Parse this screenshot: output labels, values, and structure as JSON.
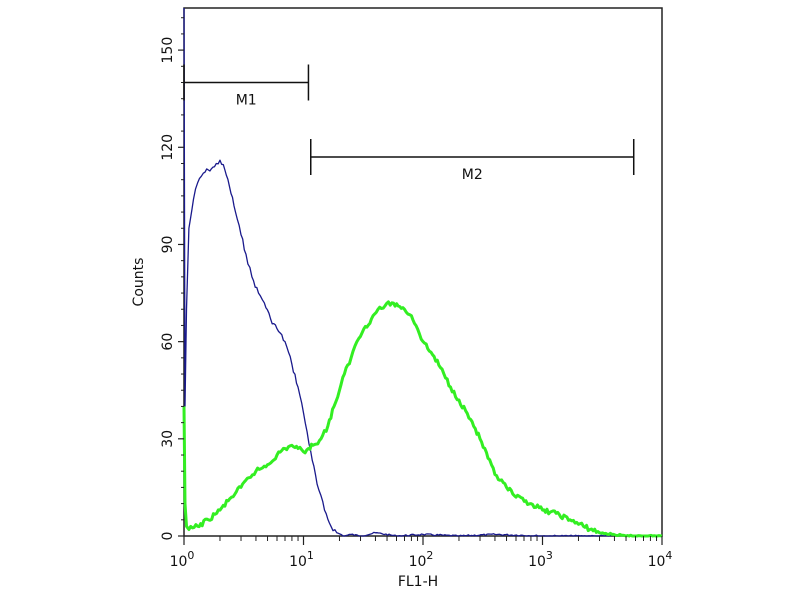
{
  "chart_data": {
    "type": "line",
    "xlabel": "FL1-H",
    "ylabel": "Counts",
    "x_scale": "log",
    "xlim": [
      1,
      10000
    ],
    "ylim": [
      0,
      163
    ],
    "y_ticks": [
      0,
      30,
      60,
      90,
      120,
      150
    ],
    "x_ticks": [
      {
        "value": 1,
        "base": "10",
        "exp": "0"
      },
      {
        "value": 10,
        "base": "10",
        "exp": "1"
      },
      {
        "value": 100,
        "base": "10",
        "exp": "2"
      },
      {
        "value": 1000,
        "base": "10",
        "exp": "3"
      },
      {
        "value": 10000,
        "base": "10",
        "exp": "4"
      }
    ],
    "series": [
      {
        "color": "#1a1a8c",
        "x": [
          1.0,
          1.02,
          1.05,
          1.1,
          1.2,
          1.3,
          1.45,
          1.6,
          1.8,
          2.0,
          2.2,
          2.4,
          2.7,
          3.0,
          3.3,
          3.7,
          4.2,
          4.7,
          5.3,
          6.0,
          7.0,
          8.0,
          9.0,
          10.0,
          11.5,
          13.0,
          15.0,
          17.0,
          19.0,
          22.0,
          25.0,
          30.0,
          40.0,
          60.0,
          100.0,
          200.0,
          400.0,
          1000.0,
          3000.0,
          10000.0
        ],
        "y": [
          163,
          40,
          70,
          95,
          104,
          109,
          112,
          113,
          114,
          116,
          113,
          108,
          100,
          93,
          87,
          80,
          75,
          72,
          67,
          64,
          60,
          53,
          46,
          38,
          26,
          16,
          8,
          3,
          1,
          0,
          0.5,
          0,
          1,
          0,
          0.5,
          0,
          0.5,
          0,
          0,
          0
        ]
      },
      {
        "color": "#33ee22",
        "x": [
          1.0,
          1.02,
          1.05,
          1.1,
          1.3,
          1.6,
          2.0,
          2.5,
          3.0,
          3.5,
          4.0,
          5.0,
          6.0,
          7.0,
          8.0,
          9.0,
          10.0,
          11.0,
          12.0,
          14.0,
          16.0,
          18.0,
          20.0,
          22.0,
          25.0,
          28.0,
          32.0,
          37.0,
          42.0,
          48.0,
          55.0,
          62.0,
          70.0,
          80.0,
          90.0,
          100.0,
          120.0,
          140.0,
          170.0,
          200.0,
          250.0,
          300.0,
          350.0,
          400.0,
          500.0,
          600.0,
          800.0,
          1000.0,
          1300.0,
          1700.0,
          2200.0,
          3000.0,
          5000.0,
          10000.0
        ],
        "y": [
          40,
          10,
          3,
          2,
          3,
          5,
          8,
          12,
          15,
          18,
          20,
          22,
          25,
          27,
          28,
          27,
          26,
          27,
          28,
          30,
          34,
          40,
          45,
          50,
          55,
          60,
          64,
          67,
          70,
          71,
          72,
          71,
          70,
          68,
          64,
          60,
          56,
          52,
          46,
          42,
          36,
          30,
          24,
          19,
          15,
          12,
          10,
          8,
          7,
          5,
          3,
          1,
          0,
          0
        ]
      }
    ],
    "markers": [
      {
        "label": "M1",
        "x_start": 1.0,
        "x_end": 11.0,
        "y": 140
      },
      {
        "label": "M2",
        "x_start": 11.5,
        "x_end": 5800.0,
        "y": 117
      }
    ]
  }
}
